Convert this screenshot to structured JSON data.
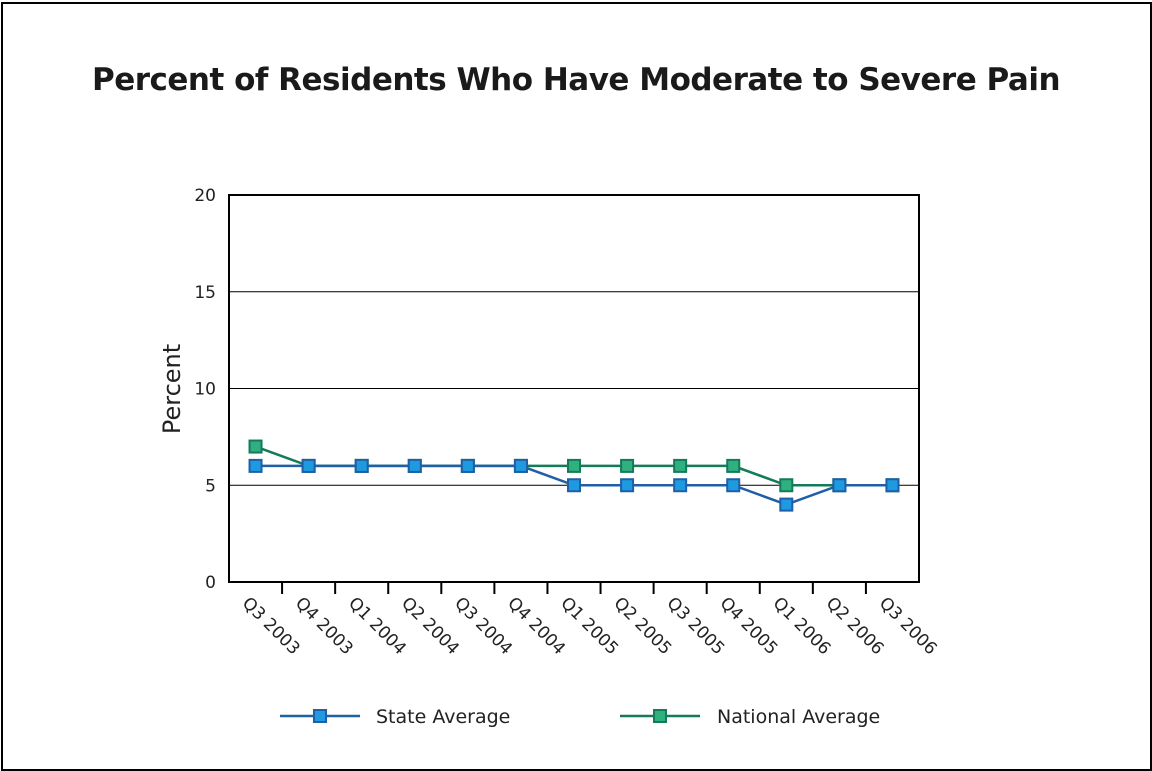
{
  "chart_data": {
    "type": "line",
    "title": "Percent of Residents Who Have Moderate to Severe Pain",
    "ylabel": "Percent",
    "xlabel": "",
    "ylim": [
      0,
      20
    ],
    "yticks": [
      0,
      5,
      10,
      15,
      20
    ],
    "grid": true,
    "legend_position": "bottom",
    "categories": [
      "Q3 2003",
      "Q4 2003",
      "Q1 2004",
      "Q2 2004",
      "Q3 2004",
      "Q4 2004",
      "Q1 2005",
      "Q2 2005",
      "Q3 2005",
      "Q4 2005",
      "Q1 2006",
      "Q2 2006",
      "Q3 2006"
    ],
    "series": [
      {
        "name": "State Average",
        "values": [
          6,
          6,
          6,
          6,
          6,
          6,
          5,
          5,
          5,
          5,
          4,
          5,
          5
        ],
        "line_color": "#1f5fa8",
        "marker_color": "#1e9be0"
      },
      {
        "name": "National Average",
        "values": [
          7,
          6,
          6,
          6,
          6,
          6,
          6,
          6,
          6,
          6,
          5,
          5,
          5
        ],
        "line_color": "#137a5a",
        "marker_color": "#2fb07f"
      }
    ]
  }
}
